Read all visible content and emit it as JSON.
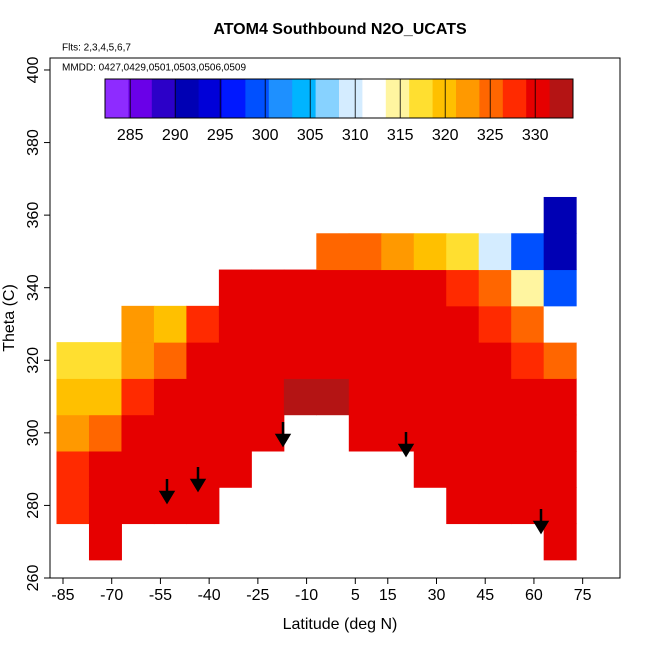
{
  "chart_data": {
    "type": "heatmap",
    "title": "ATOM4 Southbound N2O_UCATS",
    "subtitle": "Flts: 2,3,4,5,6,7",
    "annotation": "MMDD: 0427,0429,0501,0503,0506,0509",
    "x_label": "Latitude (deg N)",
    "y_label": "Theta (C)",
    "xlim": [
      -89,
      86.5
    ],
    "ylim": [
      260,
      403.3
    ],
    "xticks": [
      -85,
      -70,
      -55,
      -40,
      -25,
      -10,
      5,
      15,
      30,
      45,
      60,
      75
    ],
    "yticks": [
      260,
      280,
      300,
      320,
      340,
      360,
      380,
      400
    ],
    "x_edges": [
      -87,
      -77,
      -67,
      -57,
      -47,
      -37,
      -27,
      -17,
      -7,
      3,
      13,
      23,
      33,
      43,
      53,
      63,
      73
    ],
    "y_edges": [
      265,
      275,
      285,
      295,
      305,
      315,
      325,
      335,
      345,
      355,
      365
    ],
    "z": [
      [
        null,
        329,
        null,
        null,
        null,
        null,
        null,
        null,
        null,
        null,
        null,
        null,
        null,
        null,
        null,
        330
      ],
      [
        328,
        329,
        330,
        330,
        331,
        null,
        null,
        null,
        null,
        null,
        null,
        null,
        330,
        330,
        330,
        331
      ],
      [
        327,
        329,
        330,
        330,
        331,
        331,
        null,
        null,
        null,
        null,
        null,
        330,
        331,
        331,
        330,
        331
      ],
      [
        322,
        326,
        329,
        330,
        331,
        331,
        331,
        null,
        null,
        331,
        331,
        331,
        331,
        331,
        330,
        330
      ],
      [
        319,
        320,
        327,
        329,
        330,
        331,
        331,
        332,
        332,
        331,
        331,
        330,
        331,
        330,
        330,
        330
      ],
      [
        318,
        318,
        323,
        326,
        329,
        330,
        331,
        331,
        331,
        330,
        331,
        330,
        330,
        330,
        328,
        325
      ],
      [
        null,
        null,
        322,
        320,
        327,
        330,
        330,
        330,
        331,
        330,
        330,
        330,
        329,
        328,
        324,
        312
      ],
      [
        null,
        null,
        null,
        null,
        null,
        329,
        330,
        330,
        330,
        330,
        330,
        330,
        328,
        325,
        315,
        300
      ],
      [
        null,
        null,
        null,
        null,
        null,
        null,
        null,
        null,
        325,
        326,
        322,
        321,
        317,
        310,
        300,
        292
      ],
      [
        null,
        null,
        null,
        null,
        null,
        null,
        null,
        null,
        null,
        null,
        null,
        null,
        null,
        null,
        null,
        292
      ]
    ],
    "colorbar": {
      "lim": [
        282.2,
        334.2
      ],
      "ticks": [
        285,
        290,
        295,
        300,
        305,
        310,
        315,
        320,
        325,
        330
      ],
      "colors": [
        "#8e2bff",
        "#6a00e8",
        "#2c00c8",
        "#0000b4",
        "#0000d8",
        "#0018ff",
        "#0050ff",
        "#1e90ff",
        "#00b4ff",
        "#87d2ff",
        "#d4ecff",
        "#ffffff",
        "#fff5a0",
        "#ffdf30",
        "#ffc000",
        "#ff9900",
        "#ff6600",
        "#ff2a00",
        "#e60000",
        "#b41414"
      ]
    }
  }
}
